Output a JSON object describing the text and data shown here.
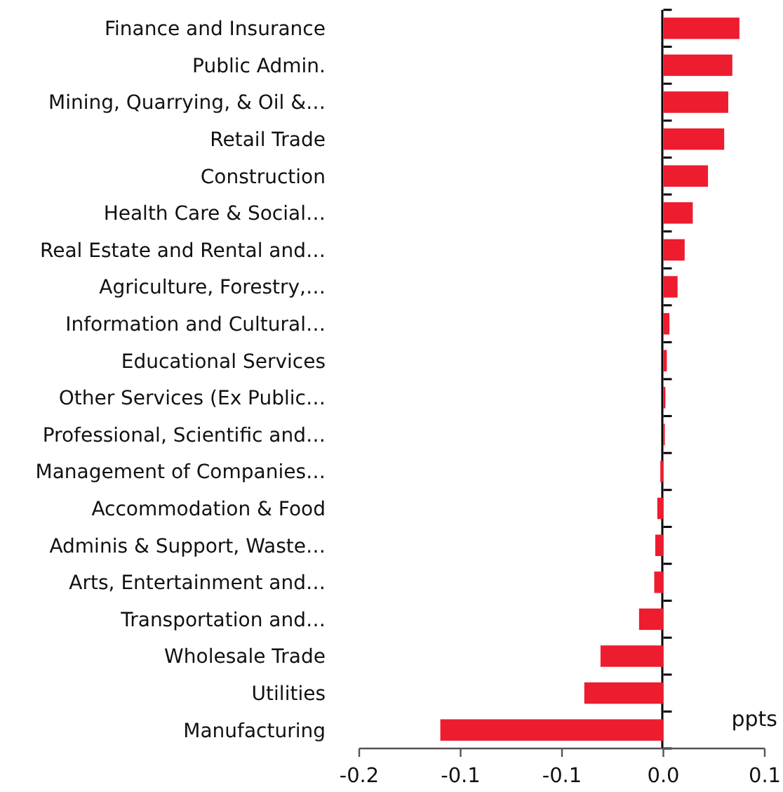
{
  "chart_data": {
    "type": "bar",
    "orientation": "horizontal",
    "categories": [
      "Finance and Insurance",
      "Public Admin.",
      "Mining, Quarrying, & Oil &…",
      "Retail Trade",
      "Construction",
      "Health Care & Social…",
      "Real Estate and Rental and…",
      "Agriculture, Forestry,…",
      "Information and Cultural…",
      "Educational Services",
      "Other Services (Ex Public…",
      "Professional, Scientific and…",
      "Management of Companies…",
      "Accommodation & Food",
      "Adminis & Support, Waste…",
      "Arts, Entertainment and…",
      "Transportation and…",
      "Wholesale Trade",
      "Utilities",
      "Manufacturing"
    ],
    "values": [
      0.0375,
      0.034,
      0.032,
      0.03,
      0.022,
      0.0145,
      0.0105,
      0.007,
      0.003,
      0.0017,
      0.001,
      0.0007,
      -0.0015,
      -0.003,
      -0.004,
      -0.0045,
      -0.012,
      -0.031,
      -0.039,
      -0.11
    ],
    "color": "#ed1c2e",
    "xlim": [
      -0.15,
      0.05
    ],
    "xticks": [
      {
        "value": -0.15,
        "label": "-0.2"
      },
      {
        "value": -0.1,
        "label": "-0.1"
      },
      {
        "value": -0.05,
        "label": "-0.1"
      },
      {
        "value": 0,
        "label": "0.0"
      },
      {
        "value": 0.05,
        "label": "0.1"
      }
    ],
    "annotations": [
      "ppts"
    ]
  }
}
